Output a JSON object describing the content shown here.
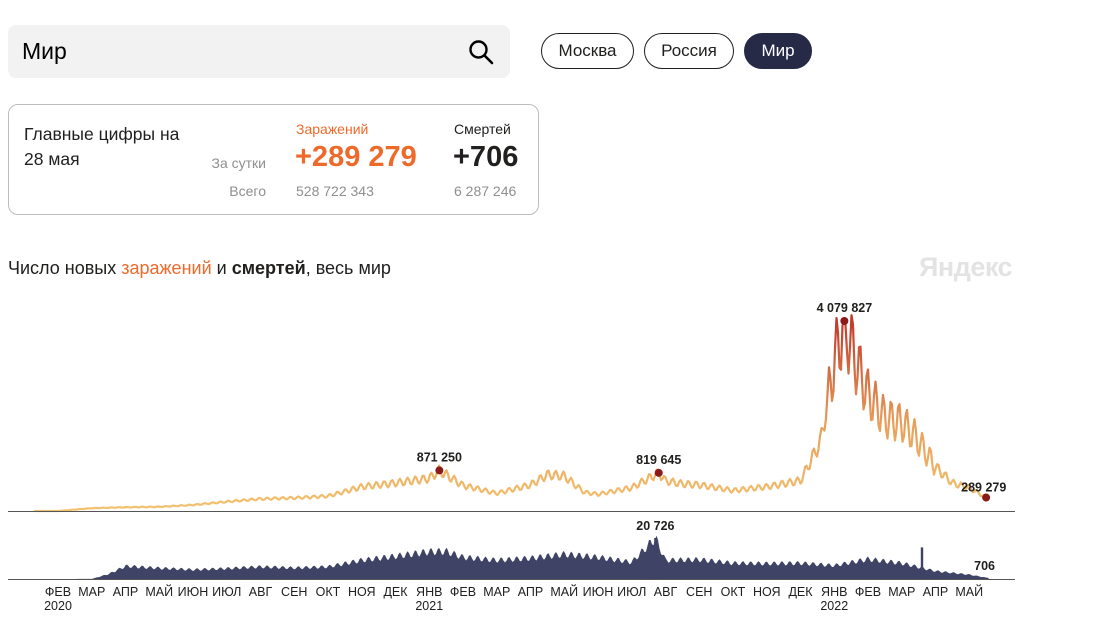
{
  "search": {
    "value": "Мир"
  },
  "regions": [
    {
      "label": "Москва",
      "active": false
    },
    {
      "label": "Россия",
      "active": false
    },
    {
      "label": "Мир",
      "active": true
    }
  ],
  "summary": {
    "title": "Главные цифры на 28 мая",
    "row_day_label": "За сутки",
    "row_total_label": "Всего",
    "infections": {
      "label": "Заражений",
      "day": "+289 279",
      "total": "528 722 343"
    },
    "deaths": {
      "label": "Смертей",
      "day": "+706",
      "total": "6 287 246"
    }
  },
  "chart_title": {
    "prefix": "Число новых ",
    "infections_word": "заражений",
    "middle": " и ",
    "deaths_word": "смертей",
    "suffix": ", весь мир"
  },
  "brand": "Яндекс",
  "colors": {
    "accent_orange": "#ee6a2a",
    "infections_low": "#f2c26f",
    "infections_high": "#c0392b",
    "deaths": "#3f4366",
    "marker": "#8b1a1a",
    "active_button": "#262a47"
  },
  "chart_data": {
    "type": "area",
    "x_ticks": [
      {
        "label": "ФЕВ",
        "year": "2020"
      },
      {
        "label": "МАР"
      },
      {
        "label": "АПР"
      },
      {
        "label": "МАЙ"
      },
      {
        "label": "ИЮН"
      },
      {
        "label": "ИЮЛ"
      },
      {
        "label": "АВГ"
      },
      {
        "label": "СЕН"
      },
      {
        "label": "ОКТ"
      },
      {
        "label": "НОЯ"
      },
      {
        "label": "ДЕК"
      },
      {
        "label": "ЯНВ",
        "year": "2021"
      },
      {
        "label": "ФЕВ"
      },
      {
        "label": "МАР"
      },
      {
        "label": "АПР"
      },
      {
        "label": "МАЙ"
      },
      {
        "label": "ИЮН"
      },
      {
        "label": "ИЮЛ"
      },
      {
        "label": "АВГ"
      },
      {
        "label": "СЕН"
      },
      {
        "label": "ОКТ"
      },
      {
        "label": "НОЯ"
      },
      {
        "label": "ДЕК"
      },
      {
        "label": "ЯНВ",
        "year": "2022"
      },
      {
        "label": "ФЕВ"
      },
      {
        "label": "МАР"
      },
      {
        "label": "АПР"
      },
      {
        "label": "МАЙ"
      }
    ],
    "series": [
      {
        "name": "заражений",
        "x": [
          0,
          1,
          2,
          3,
          4,
          5,
          6,
          7,
          8,
          9,
          10,
          11,
          11.3,
          12,
          13,
          14,
          14.5,
          15,
          15.6,
          16,
          17,
          17.8,
          18,
          18.5,
          19,
          20,
          21,
          22,
          22.6,
          23,
          23.3,
          23.6,
          24,
          24.5,
          25,
          25.4,
          26,
          26.5,
          27,
          27.5
        ],
        "values": [
          0,
          60000,
          80000,
          90000,
          130000,
          200000,
          260000,
          280000,
          320000,
          520000,
          600000,
          700000,
          871250,
          550000,
          380000,
          560000,
          780000,
          750000,
          400000,
          360000,
          500000,
          819645,
          650000,
          580000,
          560000,
          440000,
          520000,
          650000,
          1500000,
          3200000,
          4079827,
          3300000,
          2500000,
          2000000,
          1900000,
          1600000,
          950000,
          600000,
          500000,
          289279
        ],
        "weekly_oscillation": true
      },
      {
        "name": "смертей",
        "x": [
          0,
          1,
          1.5,
          2,
          3,
          4,
          5,
          6,
          7,
          8,
          9,
          10,
          11,
          11.5,
          12,
          13,
          14,
          15,
          16,
          17,
          17.7,
          18,
          19,
          20,
          21,
          22,
          23,
          24,
          25,
          26,
          27,
          27.5
        ],
        "values": [
          0,
          50,
          2500,
          6500,
          5500,
          4700,
          5300,
          6200,
          5600,
          6200,
          9500,
          11500,
          13800,
          14000,
          11000,
          9500,
          10500,
          12500,
          11000,
          8500,
          20726,
          9500,
          9800,
          8000,
          7800,
          8000,
          6800,
          10000,
          8000,
          4000,
          2200,
          706
        ],
        "weekly_oscillation": true
      }
    ],
    "annotations": [
      {
        "series": "заражений",
        "x": 11.3,
        "value": 871250,
        "label": "871 250"
      },
      {
        "series": "заражений",
        "x": 17.8,
        "value": 819645,
        "label": "819 645"
      },
      {
        "series": "заражений",
        "x": 23.3,
        "value": 4079827,
        "label": "4 079 827"
      },
      {
        "series": "заражений",
        "x": 27.5,
        "value": 289279,
        "label": "289 279"
      },
      {
        "series": "смертей",
        "x": 17.7,
        "value": 20726,
        "label": "20 726"
      },
      {
        "series": "смертей",
        "x": 27.5,
        "value": 706,
        "label": "706"
      }
    ],
    "grid": false,
    "legend": "none"
  }
}
